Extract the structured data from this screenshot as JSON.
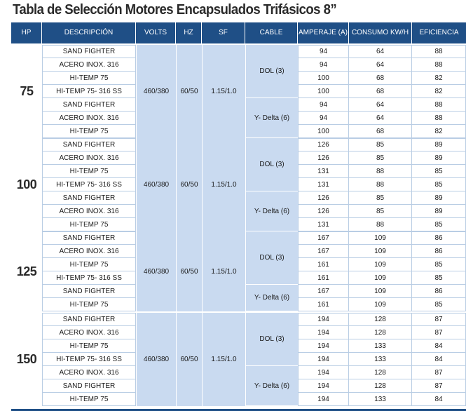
{
  "title": "Tabla de Selección Motores Encapsulados Trifásicos 8”",
  "headers": [
    "HP",
    "DESCRIPCIÓN",
    "VOLTS",
    "HZ",
    "SF",
    "CABLE",
    "AMPERAJE (A)",
    "CONSUMO KW/H",
    "EFICIENCIA"
  ],
  "colors": {
    "header_bg": "#1f4f86",
    "span_bg": "#c9daf0",
    "grid": "#b9cde4"
  },
  "blocks": [
    {
      "hp": "75",
      "volts": "460/380",
      "hz": "60/50",
      "sf": "1.15/1.0",
      "cable_groups": [
        {
          "label": "DOL (3)",
          "count": 4
        },
        {
          "label": "Y- Delta (6)",
          "count": 3
        }
      ],
      "rows": [
        {
          "desc": "SAND FIGHTER",
          "amp": "94",
          "kwh": "64",
          "eff": "88"
        },
        {
          "desc": "ACERO INOX. 316",
          "amp": "94",
          "kwh": "64",
          "eff": "88"
        },
        {
          "desc": "HI-TEMP 75",
          "amp": "100",
          "kwh": "68",
          "eff": "82"
        },
        {
          "desc": "HI-TEMP 75- 316 SS",
          "amp": "100",
          "kwh": "68",
          "eff": "82"
        },
        {
          "desc": "SAND FIGHTER",
          "amp": "94",
          "kwh": "64",
          "eff": "88"
        },
        {
          "desc": "ACERO INOX. 316",
          "amp": "94",
          "kwh": "64",
          "eff": "88"
        },
        {
          "desc": "HI-TEMP 75",
          "amp": "100",
          "kwh": "68",
          "eff": "82"
        }
      ]
    },
    {
      "hp": "100",
      "volts": "460/380",
      "hz": "60/50",
      "sf": "1.15/1.0",
      "cable_groups": [
        {
          "label": "DOL (3)",
          "count": 4
        },
        {
          "label": "Y- Delta (6)",
          "count": 3
        }
      ],
      "rows": [
        {
          "desc": "SAND FIGHTER",
          "amp": "126",
          "kwh": "85",
          "eff": "89"
        },
        {
          "desc": "ACERO INOX. 316",
          "amp": "126",
          "kwh": "85",
          "eff": "89"
        },
        {
          "desc": "HI-TEMP 75",
          "amp": "131",
          "kwh": "88",
          "eff": "85"
        },
        {
          "desc": "HI-TEMP 75- 316 SS",
          "amp": "131",
          "kwh": "88",
          "eff": "85"
        },
        {
          "desc": "SAND FIGHTER",
          "amp": "126",
          "kwh": "85",
          "eff": "89"
        },
        {
          "desc": "ACERO INOX. 316",
          "amp": "126",
          "kwh": "85",
          "eff": "89"
        },
        {
          "desc": "HI-TEMP 75",
          "amp": "131",
          "kwh": "88",
          "eff": "85"
        }
      ]
    },
    {
      "hp": "125",
      "volts": "460/380",
      "hz": "60/50",
      "sf": "1.15/1.0",
      "cable_groups": [
        {
          "label": "DOL (3)",
          "count": 4
        },
        {
          "label": "Y- Delta (6)",
          "count": 2
        }
      ],
      "rows": [
        {
          "desc": "SAND FIGHTER",
          "amp": "167",
          "kwh": "109",
          "eff": "86"
        },
        {
          "desc": "ACERO INOX. 316",
          "amp": "167",
          "kwh": "109",
          "eff": "86"
        },
        {
          "desc": "HI-TEMP 75",
          "amp": "161",
          "kwh": "109",
          "eff": "85"
        },
        {
          "desc": "HI-TEMP 75- 316 SS",
          "amp": "161",
          "kwh": "109",
          "eff": "85"
        },
        {
          "desc": "SAND FIGHTER",
          "amp": "167",
          "kwh": "109",
          "eff": "86"
        },
        {
          "desc": "HI-TEMP 75",
          "amp": "161",
          "kwh": "109",
          "eff": "85"
        }
      ]
    },
    {
      "hp": "150",
      "volts": "460/380",
      "hz": "60/50",
      "sf": "1.15/1.0",
      "cable_groups": [
        {
          "label": "DOL (3)",
          "count": 4
        },
        {
          "label": "Y- Delta (6)",
          "count": 3
        }
      ],
      "rows": [
        {
          "desc": "SAND FIGHTER",
          "amp": "194",
          "kwh": "128",
          "eff": "87"
        },
        {
          "desc": "ACERO INOX. 316",
          "amp": "194",
          "kwh": "128",
          "eff": "87"
        },
        {
          "desc": "HI-TEMP 75",
          "amp": "194",
          "kwh": "133",
          "eff": "84"
        },
        {
          "desc": "HI-TEMP 75- 316 SS",
          "amp": "194",
          "kwh": "133",
          "eff": "84"
        },
        {
          "desc": "ACERO INOX. 316",
          "amp": "194",
          "kwh": "128",
          "eff": "87"
        },
        {
          "desc": "SAND FIGHTER",
          "amp": "194",
          "kwh": "128",
          "eff": "87"
        },
        {
          "desc": "HI-TEMP 75",
          "amp": "194",
          "kwh": "133",
          "eff": "84"
        }
      ]
    }
  ]
}
